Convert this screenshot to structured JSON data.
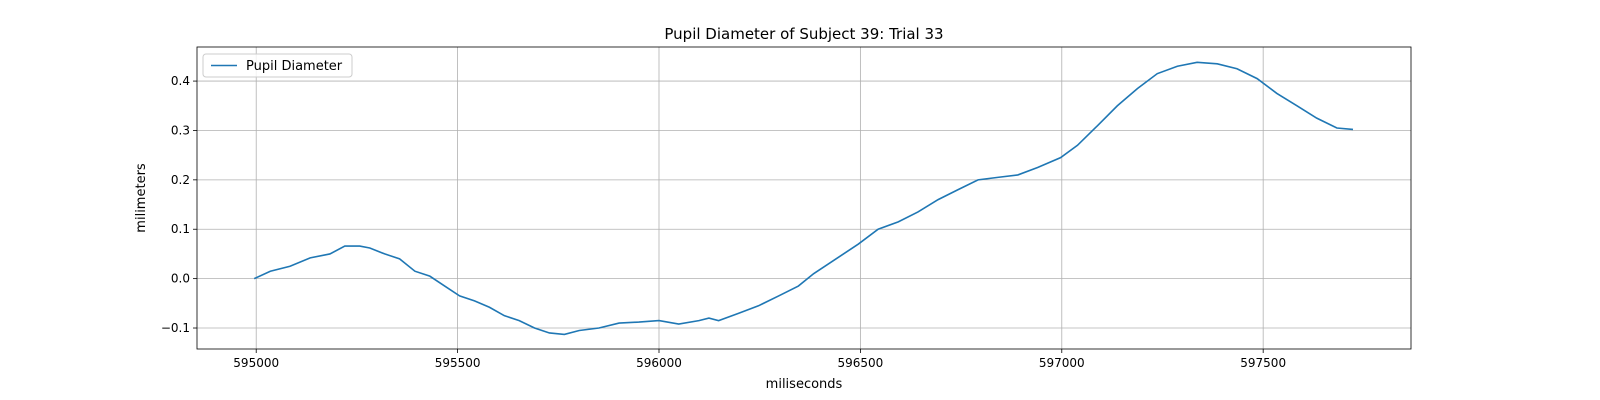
{
  "chart_data": {
    "type": "line",
    "title": "Pupil Diameter of Subject 39: Trial 33",
    "xlabel": "miliseconds",
    "ylabel": "milimeters",
    "x": [
      594995,
      595035,
      595084,
      595134,
      595183,
      595220,
      595257,
      595282,
      595319,
      595356,
      595394,
      595431,
      595468,
      595505,
      595542,
      595579,
      595616,
      595653,
      595691,
      595728,
      595765,
      595802,
      595851,
      595901,
      595950,
      596000,
      596049,
      596099,
      596124,
      596148,
      596198,
      596247,
      596297,
      596346,
      596384,
      596421,
      596458,
      596495,
      596544,
      596594,
      596643,
      596693,
      596742,
      596792,
      596841,
      596891,
      596940,
      596997,
      597039,
      597089,
      597138,
      597188,
      597237,
      597287,
      597336,
      597386,
      597435,
      597485,
      597534,
      597584,
      597633,
      597683,
      597723
    ],
    "series": [
      {
        "name": "Pupil Diameter",
        "color": "#1f77b4",
        "values": [
          0.0,
          0.015,
          0.025,
          0.042,
          0.05,
          0.066,
          0.066,
          0.062,
          0.05,
          0.04,
          0.015,
          0.005,
          -0.015,
          -0.035,
          -0.045,
          -0.058,
          -0.075,
          -0.085,
          -0.1,
          -0.11,
          -0.113,
          -0.105,
          -0.1,
          -0.09,
          -0.088,
          -0.085,
          -0.092,
          -0.085,
          -0.08,
          -0.085,
          -0.07,
          -0.055,
          -0.035,
          -0.015,
          0.01,
          0.03,
          0.05,
          0.07,
          0.1,
          0.115,
          0.135,
          0.16,
          0.18,
          0.2,
          0.205,
          0.21,
          0.225,
          0.245,
          0.27,
          0.31,
          0.35,
          0.385,
          0.415,
          0.43,
          0.438,
          0.435,
          0.425,
          0.405,
          0.375,
          0.35,
          0.325,
          0.305,
          0.302
        ]
      }
    ],
    "xlim": [
      594853,
      597867
    ],
    "xticks": [
      595000,
      595500,
      596000,
      596500,
      597000,
      597500
    ],
    "ylim": [
      -0.1425,
      0.469
    ],
    "yticks": [
      {
        "value": -0.1,
        "label": "−0.1"
      },
      {
        "value": 0,
        "label": "0.0"
      },
      0.1,
      0.2,
      0.3,
      0.4
    ],
    "grid": true,
    "legend": "upper left"
  }
}
